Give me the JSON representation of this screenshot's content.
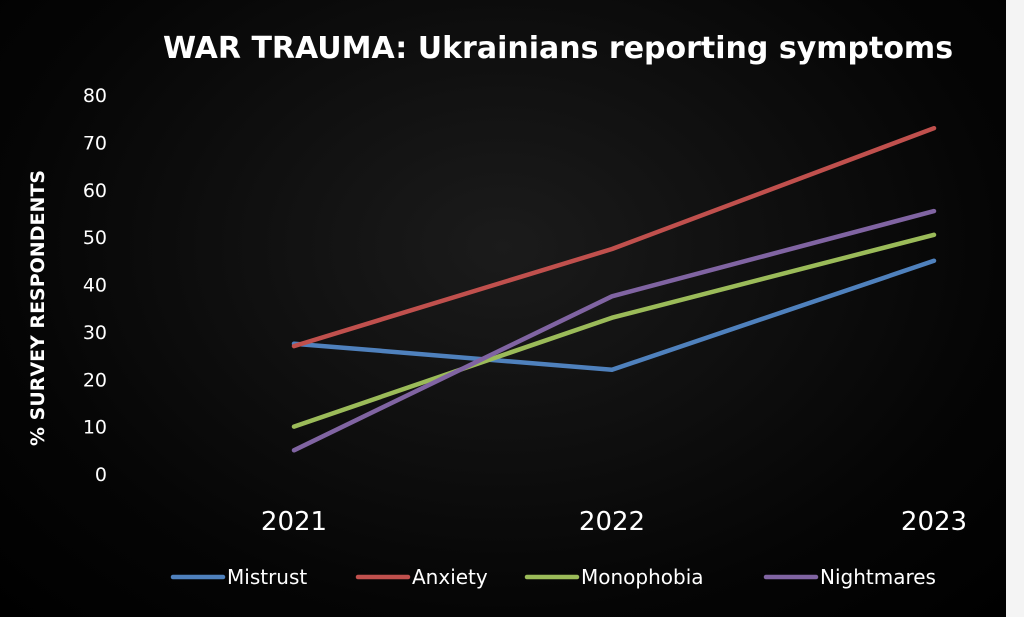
{
  "chart_data": {
    "type": "line",
    "title": "WAR TRAUMA: Ukrainians reporting symptoms",
    "xlabel": "",
    "ylabel": "% SURVEY RESPONDENTS",
    "categories": [
      "2021",
      "2022",
      "2023"
    ],
    "ylim": [
      0,
      80
    ],
    "yticks": [
      0,
      10,
      20,
      30,
      40,
      50,
      60,
      70,
      80
    ],
    "grid": false,
    "legend_position": "bottom",
    "series": [
      {
        "name": "Mistrust",
        "color": "#4f81bd",
        "values": [
          27.5,
          22,
          45
        ]
      },
      {
        "name": "Anxiety",
        "color": "#c0504d",
        "values": [
          27,
          47.5,
          73
        ]
      },
      {
        "name": "Monophobia",
        "color": "#9bbb59",
        "values": [
          10,
          33,
          50.5
        ]
      },
      {
        "name": "Nightmares",
        "color": "#8064a2",
        "values": [
          5,
          37.5,
          55.5
        ]
      }
    ]
  }
}
